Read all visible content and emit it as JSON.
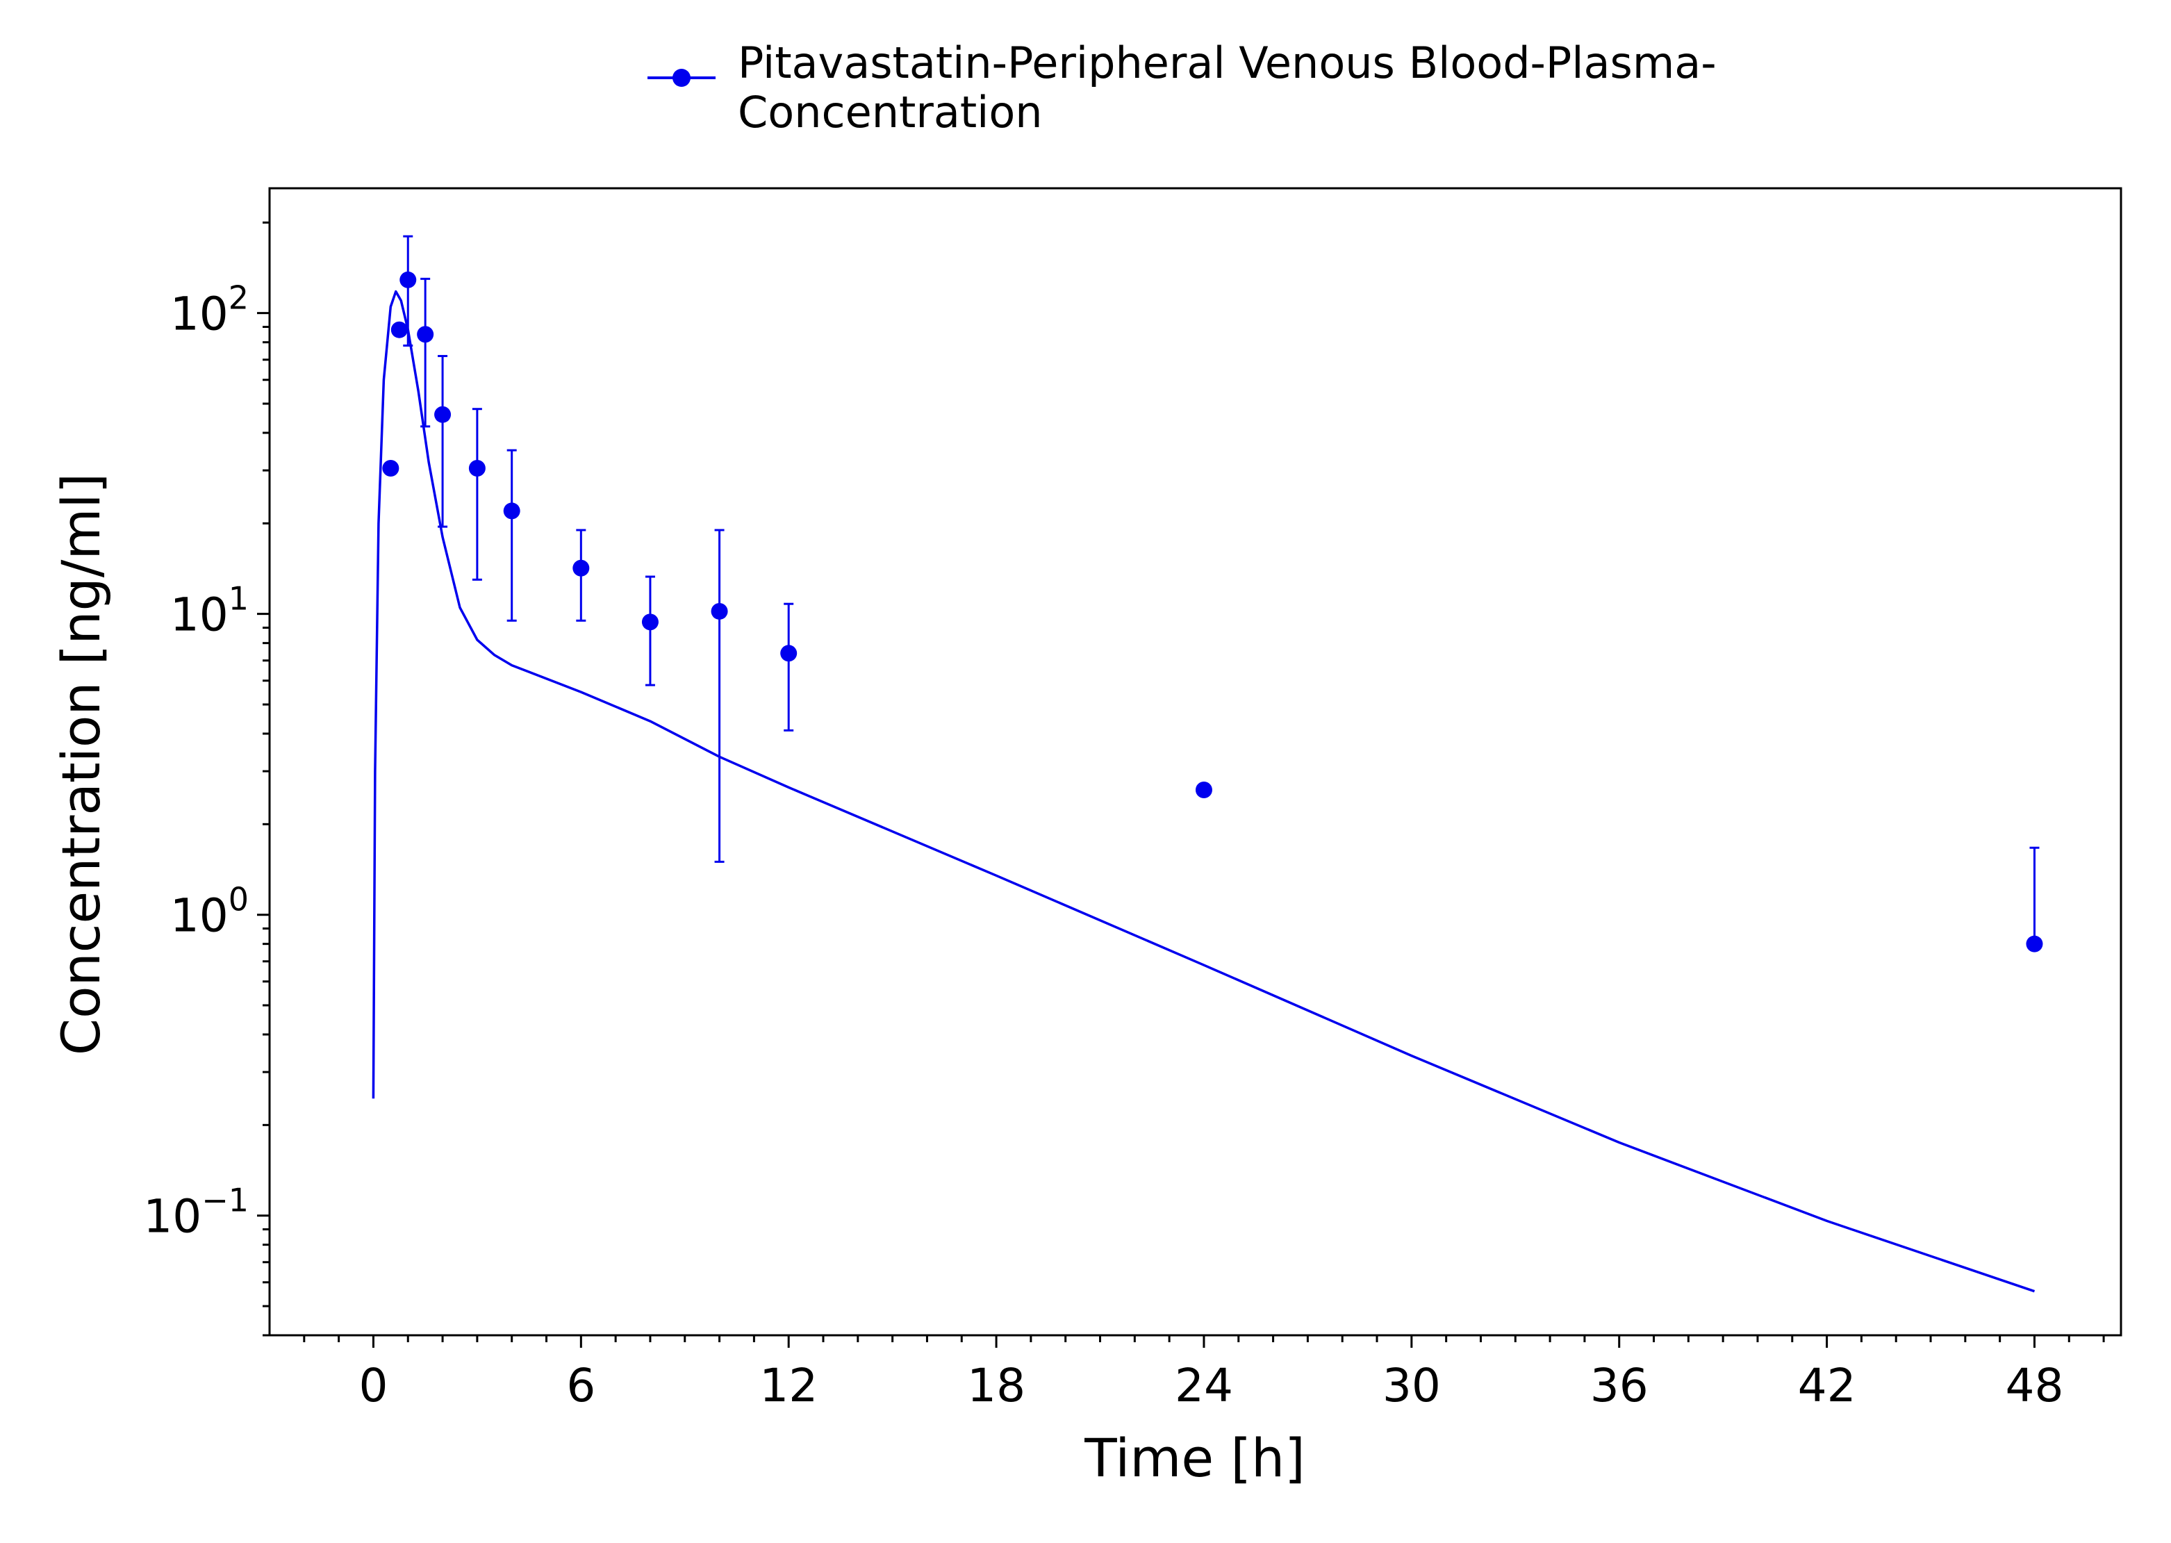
{
  "chart_data": {
    "type": "scatter",
    "title": "",
    "xlabel": "Time [h]",
    "ylabel": "Concentration [ng/ml]",
    "xlim": [
      -3,
      50.5
    ],
    "ylim": [
      0.04,
      260
    ],
    "yscale": "log",
    "grid": false,
    "legend_position": "top-center",
    "x_ticks": [
      0,
      6,
      12,
      18,
      24,
      30,
      36,
      42,
      48
    ],
    "x_tick_labels": [
      "0",
      "6",
      "12",
      "18",
      "24",
      "30",
      "36",
      "42",
      "48"
    ],
    "y_ticks": [
      {
        "value": 100,
        "base": "10",
        "exp": "2"
      },
      {
        "value": 10,
        "base": "10",
        "exp": "1"
      },
      {
        "value": 1,
        "base": "10",
        "exp": "0"
      },
      {
        "value": 0.1,
        "base": "10",
        "exp": "−1"
      }
    ],
    "color": "#0000ee",
    "series": [
      {
        "name": "Pitavastatin-Peripheral Venous Blood-Plasma-Concentration",
        "legend_lines": [
          "Pitavastatin-Peripheral Venous Blood-Plasma-",
          "Concentration"
        ],
        "kind": "observed",
        "points": [
          {
            "x": 0.5,
            "y": 30.5
          },
          {
            "x": 0.75,
            "y": 88
          },
          {
            "x": 1.0,
            "y": 129,
            "err_low": 78,
            "err_high": 180
          },
          {
            "x": 1.5,
            "y": 85,
            "err_low": 42,
            "err_high": 130
          },
          {
            "x": 2.0,
            "y": 46,
            "err_low": 19.5,
            "err_high": 72
          },
          {
            "x": 3.0,
            "y": 30.5,
            "err_low": 13,
            "err_high": 48
          },
          {
            "x": 4.0,
            "y": 22,
            "err_low": 9.5,
            "err_high": 35
          },
          {
            "x": 6.0,
            "y": 14.2,
            "err_low": 9.5,
            "err_high": 19
          },
          {
            "x": 8.0,
            "y": 9.4,
            "err_low": 5.8,
            "err_high": 13.3
          },
          {
            "x": 10.0,
            "y": 10.2,
            "err_low": 1.5,
            "err_high": 19
          },
          {
            "x": 12.0,
            "y": 7.4,
            "err_low": 4.1,
            "err_high": 10.8
          },
          {
            "x": 24.0,
            "y": 2.6
          },
          {
            "x": 48.0,
            "y": 0.8,
            "err_low": 0.8,
            "err_high": 1.67
          }
        ]
      },
      {
        "kind": "simulated",
        "points": [
          {
            "x": 0.0,
            "y": 0.245
          },
          {
            "x": 0.05,
            "y": 3.0
          },
          {
            "x": 0.15,
            "y": 20
          },
          {
            "x": 0.3,
            "y": 60
          },
          {
            "x": 0.5,
            "y": 105
          },
          {
            "x": 0.65,
            "y": 118
          },
          {
            "x": 0.8,
            "y": 110
          },
          {
            "x": 1.0,
            "y": 88
          },
          {
            "x": 1.3,
            "y": 55
          },
          {
            "x": 1.6,
            "y": 32
          },
          {
            "x": 2.0,
            "y": 18
          },
          {
            "x": 2.5,
            "y": 10.5
          },
          {
            "x": 3.0,
            "y": 8.2
          },
          {
            "x": 3.5,
            "y": 7.3
          },
          {
            "x": 4.0,
            "y": 6.75
          },
          {
            "x": 6.0,
            "y": 5.5
          },
          {
            "x": 8.0,
            "y": 4.4
          },
          {
            "x": 10.0,
            "y": 3.35
          },
          {
            "x": 12.0,
            "y": 2.65
          },
          {
            "x": 18.0,
            "y": 1.35
          },
          {
            "x": 24.0,
            "y": 0.68
          },
          {
            "x": 30.0,
            "y": 0.34
          },
          {
            "x": 36.0,
            "y": 0.175
          },
          {
            "x": 42.0,
            "y": 0.096
          },
          {
            "x": 48.0,
            "y": 0.056
          }
        ]
      }
    ]
  }
}
